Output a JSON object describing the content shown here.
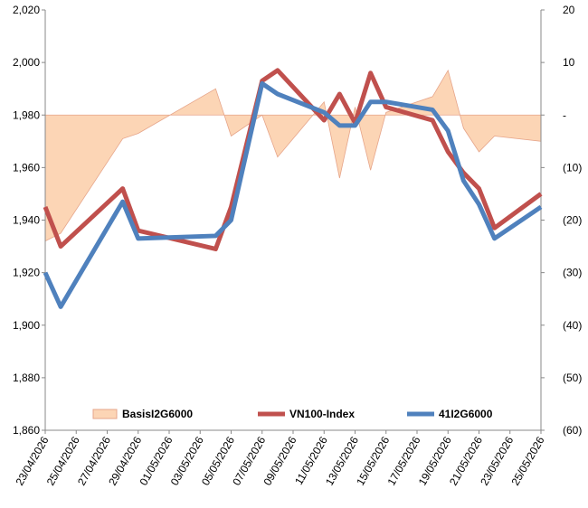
{
  "chart_data": {
    "type": "line",
    "x": [
      "23/04/2026",
      "24/04/2026",
      "28/04/2026",
      "29/04/2026",
      "04/05/2026",
      "05/05/2026",
      "07/05/2026",
      "08/05/2026",
      "11/05/2026",
      "12/05/2026",
      "13/05/2026",
      "14/05/2026",
      "15/05/2026",
      "18/05/2026",
      "19/05/2026",
      "20/05/2026",
      "21/05/2026",
      "22/05/2026",
      "25/05/2026"
    ],
    "xlim": [
      "23/04/2026",
      "25/05/2026"
    ],
    "xticks": [
      "23/04/2026",
      "25/04/2026",
      "27/04/2026",
      "29/04/2026",
      "01/05/2026",
      "03/05/2026",
      "05/05/2026",
      "07/05/2026",
      "09/05/2026",
      "11/05/2026",
      "13/05/2026",
      "15/05/2026",
      "17/05/2026",
      "19/05/2026",
      "21/05/2026",
      "23/05/2026",
      "25/05/2026"
    ],
    "ylim": [
      1860,
      2020
    ],
    "yticks": [
      {
        "value": 1860,
        "label": "1,860"
      },
      {
        "value": 1880,
        "label": "1,880"
      },
      {
        "value": 1900,
        "label": "1,900"
      },
      {
        "value": 1920,
        "label": "1,920"
      },
      {
        "value": 1940,
        "label": "1,940"
      },
      {
        "value": 1960,
        "label": "1,960"
      },
      {
        "value": 1980,
        "label": "1,980"
      },
      {
        "value": 2000,
        "label": "2,000"
      },
      {
        "value": 2020,
        "label": "2,020"
      }
    ],
    "y2lim": [
      -60,
      20
    ],
    "y2ticks": [
      {
        "value": -60,
        "label": "(60)"
      },
      {
        "value": -50,
        "label": "(50)"
      },
      {
        "value": -40,
        "label": "(40)"
      },
      {
        "value": -30,
        "label": "(30)"
      },
      {
        "value": -20,
        "label": "(20)"
      },
      {
        "value": -10,
        "label": "(10)"
      },
      {
        "value": 0,
        "label": "-"
      },
      10,
      20
    ],
    "legend": "bottom",
    "series": [
      {
        "name": "BasisI2G6000",
        "type": "area",
        "axis": "y2",
        "color": "#fcd5b5",
        "values": [
          -24,
          -22.5,
          -4.5,
          -3.5,
          5,
          -4,
          0,
          -8,
          2.5,
          -12,
          1.5,
          -10.5,
          0.5,
          3.5,
          8.5,
          -2.5,
          -7,
          -4,
          -5
        ]
      },
      {
        "name": "VN100-Index",
        "type": "line",
        "color": "#c0504d",
        "values": [
          1945,
          1930,
          1952,
          1936,
          1929,
          1945,
          1993,
          1997,
          1978,
          1988,
          1977,
          1996,
          1983,
          1978,
          1966,
          1958,
          1952,
          1937,
          1950
        ]
      },
      {
        "name": "41I2G6000",
        "type": "line",
        "color": "#4f81bd",
        "values": [
          1920,
          1907,
          1947,
          1933,
          1934,
          1940,
          1992,
          1988,
          1981,
          1976,
          1976,
          1985,
          1985,
          1982,
          1974,
          1955,
          1946,
          1933,
          1945
        ]
      }
    ]
  }
}
